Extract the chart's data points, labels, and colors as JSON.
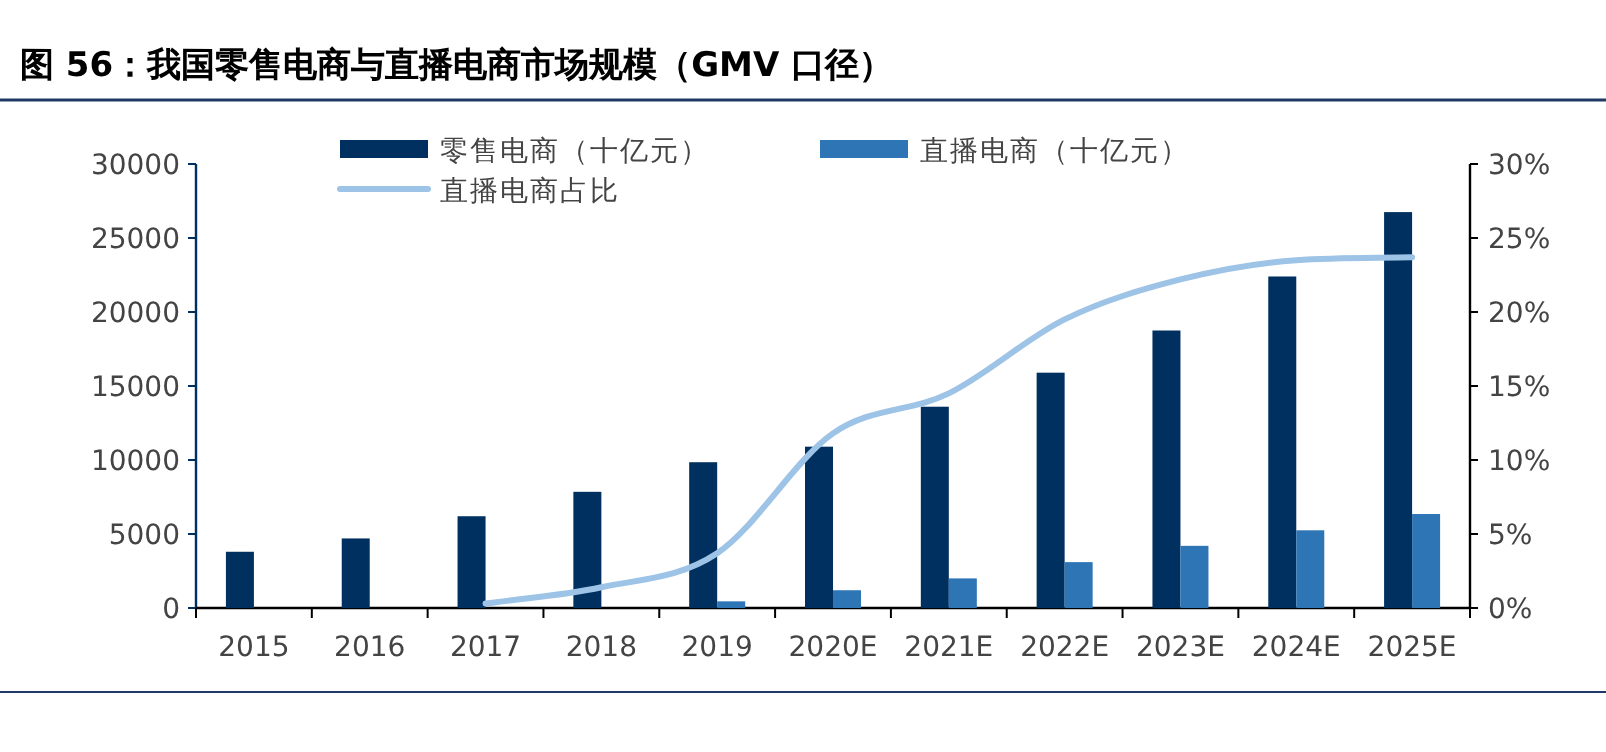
{
  "chart_data": {
    "type": "bar",
    "title": "图 56：我国零售电商与直播电商市场规模（GMV 口径）",
    "categories": [
      "2015",
      "2016",
      "2017",
      "2018",
      "2019",
      "2020E",
      "2021E",
      "2022E",
      "2023E",
      "2024E",
      "2025E"
    ],
    "series": [
      {
        "name": "零售电商（十亿元）",
        "color": "#00305f",
        "values": [
          3800,
          4700,
          6200,
          7850,
          9850,
          10900,
          13600,
          15900,
          18750,
          22400,
          26750
        ]
      },
      {
        "name": "直播电商（十亿元）",
        "color": "#2e75b6",
        "values": [
          null,
          null,
          null,
          null,
          450,
          1200,
          2000,
          3100,
          4200,
          5250,
          6350
        ]
      },
      {
        "name": "直播电商占比",
        "type": "line",
        "axis": "y2",
        "color": "#9dc3e6",
        "values": [
          null,
          null,
          0.3,
          1.4,
          3.7,
          11.8,
          14.5,
          19.5,
          22.2,
          23.5,
          23.7
        ]
      }
    ],
    "ylim": [
      0,
      30000
    ],
    "yticks": [
      0,
      5000,
      10000,
      15000,
      20000,
      25000,
      30000
    ],
    "y2lim": [
      0,
      30
    ],
    "y2ticks": [
      {
        "value": 0,
        "label": "0%"
      },
      {
        "value": 5,
        "label": "5%"
      },
      {
        "value": 10,
        "label": "10%"
      },
      {
        "value": 15,
        "label": "15%"
      },
      {
        "value": 20,
        "label": "20%"
      },
      {
        "value": 25,
        "label": "25%"
      },
      {
        "value": 30,
        "label": "30%"
      }
    ],
    "legend": "top",
    "grid": false
  }
}
